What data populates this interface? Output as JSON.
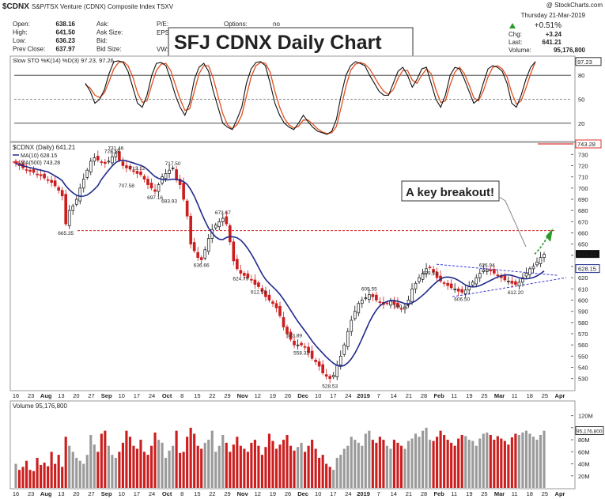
{
  "ticker": "$CDNX",
  "index_name": "S&P/TSX Venture (CDNX) Composite Index  TSXV",
  "watermark": "@ StockCharts.com",
  "quote": {
    "left": [
      {
        "label": "Open:",
        "value": "638.16"
      },
      {
        "label": "High:",
        "value": "641.50"
      },
      {
        "label": "Low:",
        "value": "636.23"
      },
      {
        "label": "Prev Close:",
        "value": "637.97"
      }
    ],
    "mid": [
      {
        "label": "Ask:"
      },
      {
        "label": "Ask Size:"
      },
      {
        "label": "Bid:"
      },
      {
        "label": "Bid Size:"
      }
    ],
    "options_label": "Options:",
    "options_value": "no",
    "pe_labels": [
      "P/E:",
      "EPS:",
      "Last:",
      "VW:"
    ],
    "right": {
      "date": "Thursday  21-Mar-2019",
      "change_pct": "+0.51%",
      "chg_label": "Chg:",
      "chg": "+3.24",
      "last_label": "Last:",
      "last": "641.21",
      "volume_label": "Volume:",
      "volume": "95,176,800"
    }
  },
  "title_box": "SFJ CDNX Daily Chart",
  "annotation": "A key breakout!",
  "colors": {
    "up": "#111111",
    "down": "#cc1e1e",
    "ma_short": "#1f2a8c",
    "ma_long": "#e03131",
    "volume": "#9a9a9a",
    "volume_down": "#cc1e1e",
    "sto_k": "#111111",
    "sto_d": "#e05020",
    "arrow": "#2a9a2a"
  },
  "chart_data": [
    {
      "type": "line",
      "panel": "Slow Stochastic",
      "label": "Slow STO %K(14) %D(3) 97.23, 97.26",
      "k_last": 97.23,
      "d_last": 97.26,
      "ylim": [
        0,
        100
      ],
      "yticks": [
        20,
        50,
        80
      ],
      "reference_lines": [
        20,
        50,
        80
      ],
      "last_value_tag": "97.23",
      "k": [
        70,
        60,
        45,
        50,
        62,
        82,
        97,
        98,
        96,
        85,
        65,
        45,
        40,
        55,
        80,
        95,
        96,
        92,
        75,
        55,
        40,
        30,
        45,
        75,
        90,
        95,
        85,
        60,
        40,
        20,
        15,
        12,
        25,
        40,
        70,
        88,
        96,
        97,
        92,
        70,
        45,
        30,
        20,
        15,
        12,
        20,
        30,
        22,
        15,
        10,
        8,
        6,
        10,
        25,
        55,
        80,
        92,
        97,
        95,
        92,
        80,
        70,
        60,
        55,
        55,
        70,
        85,
        90,
        80,
        65,
        75,
        88,
        90,
        70,
        50,
        40,
        55,
        80,
        90,
        88,
        75,
        60,
        45,
        50,
        70,
        88,
        92,
        90,
        85,
        70,
        45,
        40,
        55,
        75,
        90,
        97
      ],
      "d": [
        68,
        64,
        55,
        52,
        58,
        72,
        88,
        96,
        97,
        92,
        78,
        58,
        46,
        48,
        68,
        86,
        94,
        95,
        86,
        68,
        50,
        36,
        38,
        60,
        82,
        92,
        92,
        76,
        54,
        32,
        18,
        13,
        18,
        30,
        54,
        78,
        92,
        96,
        95,
        84,
        60,
        40,
        26,
        18,
        14,
        16,
        24,
        24,
        19,
        13,
        9,
        7,
        8,
        16,
        40,
        66,
        86,
        94,
        96,
        94,
        88,
        78,
        68,
        60,
        56,
        62,
        76,
        86,
        86,
        74,
        70,
        80,
        88,
        82,
        62,
        46,
        48,
        68,
        84,
        90,
        82,
        68,
        52,
        48,
        60,
        78,
        90,
        92,
        88,
        78,
        58,
        44,
        48,
        64,
        82,
        97
      ]
    },
    {
      "type": "candlestick",
      "panel": "Price",
      "label": "$CDNX (Daily) 641.21",
      "legend": [
        "MA(10) 628.15",
        "MA(500) 743.28"
      ],
      "ylim": [
        522,
        738
      ],
      "yticks": [
        530,
        540,
        550,
        560,
        570,
        580,
        590,
        600,
        610,
        620,
        630,
        640,
        650,
        660,
        670,
        680,
        690,
        700,
        710,
        720,
        730
      ],
      "x_labels": [
        "16",
        "23",
        "Aug",
        "13",
        "20",
        "27",
        "Sep",
        "10",
        "17",
        "24",
        "Oct",
        "8",
        "15",
        "22",
        "29",
        "Nov",
        "12",
        "19",
        "26",
        "Dec",
        "10",
        "17",
        "24",
        "2019",
        "7",
        "14",
        "21",
        "28",
        "Feb",
        "11",
        "19",
        "25",
        "Mar",
        "11",
        "18",
        "25",
        "Apr"
      ],
      "closes": [
        722,
        720,
        718,
        716,
        715,
        714,
        712,
        711,
        709,
        707,
        705,
        702,
        698,
        693,
        668,
        680,
        684,
        690,
        700,
        708,
        716,
        724,
        727,
        725,
        723,
        722,
        724,
        728,
        731,
        725,
        720,
        718,
        717,
        715,
        713,
        712,
        708,
        703,
        700,
        697,
        703,
        710,
        713,
        716,
        718,
        708,
        703,
        690,
        675,
        650,
        644,
        638,
        636,
        645,
        655,
        663,
        667,
        670,
        673,
        668,
        652,
        635,
        628,
        624,
        622,
        620,
        618,
        614,
        612,
        608,
        603,
        600,
        597,
        593,
        586,
        576,
        570,
        565,
        560,
        560,
        560,
        558,
        553,
        548,
        545,
        541,
        535,
        532,
        530,
        533,
        542,
        550,
        560,
        572,
        582,
        590,
        597,
        600,
        602,
        605,
        603,
        600,
        598,
        596,
        597,
        599,
        596,
        594,
        592,
        594,
        600,
        610,
        615,
        620,
        624,
        628,
        629,
        625,
        620,
        617,
        615,
        613,
        611,
        610,
        608,
        607,
        609,
        612,
        616,
        620,
        624,
        627,
        627,
        626,
        624,
        622,
        620,
        618,
        617,
        615,
        614,
        616,
        620,
        624,
        628,
        630,
        634,
        638,
        641
      ],
      "ma10_last": 628.15,
      "ma500_last": 743.28,
      "price_labels": [
        {
          "text": "728.58",
          "value": 728.58,
          "i": 27
        },
        {
          "text": "731.46",
          "value": 731.46,
          "i": 28
        },
        {
          "text": "707.58",
          "value": 707.58,
          "i": 31
        },
        {
          "text": "713.12",
          "value": 713.12,
          "i": 34
        },
        {
          "text": "717.50",
          "value": 717.5,
          "i": 44
        },
        {
          "text": "697.16",
          "value": 697.16,
          "i": 39
        },
        {
          "text": "683.93",
          "value": 683.93,
          "i": 43
        },
        {
          "text": "665.35",
          "value": 665.35,
          "i": 14
        },
        {
          "text": "673.67",
          "value": 673.67,
          "i": 58
        },
        {
          "text": "636.66",
          "value": 636.66,
          "i": 52
        },
        {
          "text": "624.79",
          "value": 624.79,
          "i": 63
        },
        {
          "text": "612.53",
          "value": 612.53,
          "i": 68
        },
        {
          "text": "573.89",
          "value": 573.89,
          "i": 78
        },
        {
          "text": "558.32",
          "value": 558.32,
          "i": 80
        },
        {
          "text": "528.53",
          "value": 528.53,
          "i": 88
        },
        {
          "text": "605.55",
          "value": 605.55,
          "i": 99
        },
        {
          "text": "590.15",
          "value": 590.15,
          "i": 108
        },
        {
          "text": "629.51",
          "value": 629.51,
          "i": 116
        },
        {
          "text": "606.50",
          "value": 606.5,
          "i": 125
        },
        {
          "text": "626.94",
          "value": 626.94,
          "i": 132
        },
        {
          "text": "612.20",
          "value": 612.2,
          "i": 140
        }
      ],
      "resistance_line": 662,
      "last_value_tags": [
        "641.21",
        "628.15"
      ]
    },
    {
      "type": "bar",
      "panel": "Volume",
      "label": "Volume 95,176,800",
      "ylim": [
        0,
        130
      ],
      "yticks_labels": [
        "20M",
        "40M",
        "60M",
        "80M",
        "100M",
        "120M"
      ],
      "yticks": [
        20,
        40,
        60,
        80,
        100,
        120
      ],
      "last_value_tag": "95,176,800",
      "values": [
        40,
        30,
        35,
        45,
        30,
        28,
        50,
        38,
        42,
        36,
        60,
        40,
        55,
        35,
        85,
        70,
        60,
        50,
        45,
        40,
        55,
        88,
        72,
        60,
        90,
        95,
        70,
        55,
        50,
        60,
        75,
        95,
        85,
        70,
        65,
        80,
        60,
        55,
        70,
        92,
        80,
        75,
        50,
        62,
        70,
        95,
        58,
        60,
        85,
        100,
        90,
        70,
        65,
        75,
        80,
        95,
        60,
        70,
        88,
        75,
        60,
        72,
        85,
        70,
        65,
        60,
        75,
        80,
        70,
        55,
        68,
        90,
        78,
        65,
        72,
        80,
        88,
        70,
        62,
        68,
        75,
        60,
        70,
        80,
        65,
        50,
        55,
        40,
        35,
        30,
        50,
        55,
        65,
        70,
        85,
        80,
        75,
        70,
        90,
        95,
        80,
        75,
        85,
        80,
        70,
        65,
        80,
        75,
        70,
        65,
        78,
        82,
        90,
        85,
        95,
        100,
        80,
        78,
        85,
        95,
        88,
        80,
        75,
        70,
        82,
        88,
        86,
        80,
        78,
        70,
        82,
        90,
        92,
        88,
        80,
        86,
        82,
        78,
        72,
        84,
        90,
        88,
        92,
        95,
        90,
        85,
        80,
        88,
        95
      ]
    }
  ]
}
